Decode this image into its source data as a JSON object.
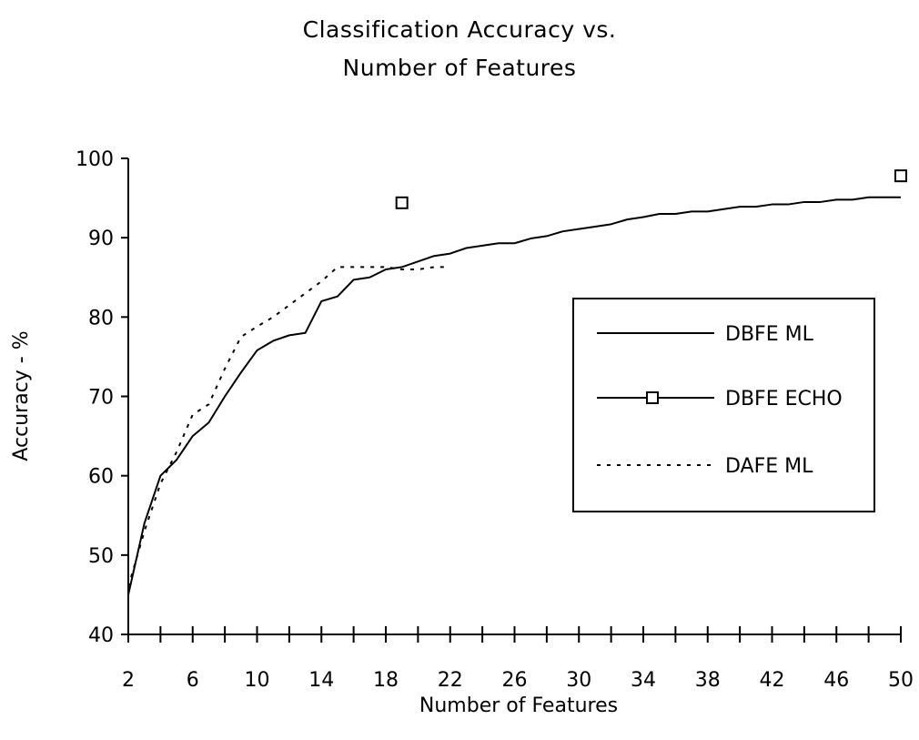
{
  "chart_data": {
    "type": "line",
    "title_lines": [
      "Classification Accuracy vs.",
      "Number of Features"
    ],
    "xlabel": "Number of Features",
    "ylabel": "Accuracy - %",
    "xlim": [
      2,
      50
    ],
    "ylim": [
      40,
      100
    ],
    "x_ticks": [
      2,
      6,
      10,
      14,
      18,
      22,
      26,
      30,
      34,
      38,
      42,
      46,
      50
    ],
    "y_ticks": [
      40,
      50,
      60,
      70,
      80,
      90,
      100
    ],
    "grid": false,
    "legend_position": "right",
    "series": [
      {
        "name": "DBFE ML",
        "style": "solid",
        "x": [
          2,
          3,
          4,
          5,
          6,
          7,
          8,
          9,
          10,
          11,
          12,
          13,
          14,
          15,
          16,
          17,
          18,
          19,
          20,
          21,
          22,
          23,
          24,
          25,
          26,
          27,
          28,
          29,
          30,
          31,
          32,
          33,
          34,
          35,
          36,
          37,
          38,
          39,
          40,
          41,
          42,
          43,
          44,
          45,
          46,
          47,
          48,
          49,
          50
        ],
        "y": [
          45,
          54,
          60,
          62,
          65,
          66.7,
          70,
          73,
          75.8,
          77,
          77.7,
          78,
          82,
          82.6,
          84.7,
          85,
          86,
          86.3,
          87,
          87.7,
          88,
          88.7,
          89,
          89.3,
          89.3,
          89.9,
          90.2,
          90.8,
          91.1,
          91.4,
          91.7,
          92.3,
          92.6,
          93,
          93,
          93.3,
          93.3,
          93.6,
          93.9,
          93.9,
          94.2,
          94.2,
          94.5,
          94.5,
          94.8,
          94.8,
          95.1,
          95.1,
          95.1
        ]
      },
      {
        "name": "DBFE ECHO",
        "style": "square-marker",
        "x": [
          19,
          50
        ],
        "y": [
          94.4,
          97.8
        ]
      },
      {
        "name": "DAFE ML",
        "style": "dotted",
        "x": [
          2,
          3,
          4,
          5,
          6,
          7,
          8,
          9,
          10,
          11,
          12,
          13,
          14,
          15,
          16,
          17,
          18,
          19,
          20,
          21,
          22
        ],
        "y": [
          46,
          53,
          59,
          63,
          67.7,
          69,
          73.5,
          77.5,
          78.8,
          80,
          81.5,
          83,
          84.5,
          86.3,
          86.3,
          86.3,
          86.3,
          86,
          86,
          86.3,
          86.3
        ]
      }
    ]
  }
}
